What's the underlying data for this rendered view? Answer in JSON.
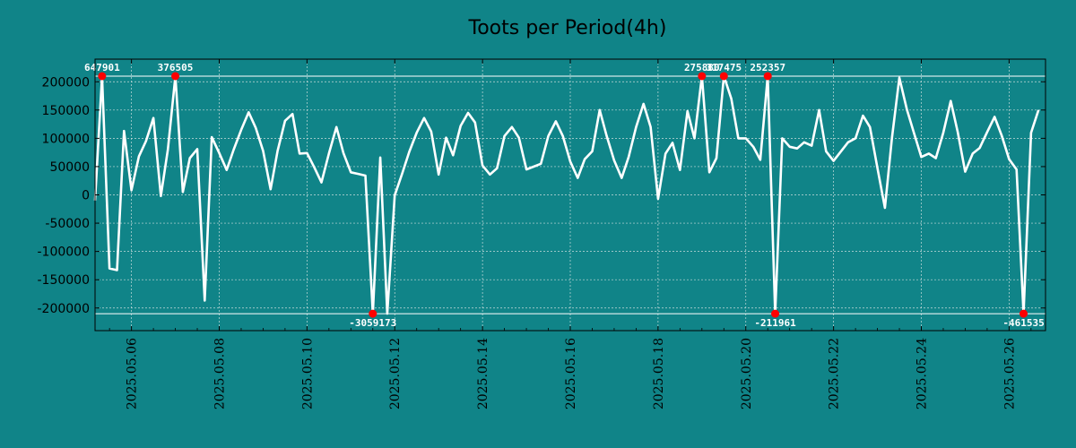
{
  "chart_data": {
    "type": "line",
    "title": "Toots per Period(4h)",
    "xlabel": "",
    "ylabel": "",
    "ylim": [
      -240000,
      240000
    ],
    "xlim_days": [
      5.17,
      26.83
    ],
    "grid": true,
    "colors": {
      "background": "#108488",
      "line": "#ffffff",
      "marker": "#ff0000",
      "grid": "#c8dcdc",
      "clip_line": "#ffffff"
    },
    "clip_limits": [
      210000,
      -210000
    ],
    "yticks": [
      {
        "value": 200000,
        "label": "200000"
      },
      {
        "value": 150000,
        "label": "150000"
      },
      {
        "value": 100000,
        "label": "100000"
      },
      {
        "value": 50000,
        "label": "50000"
      },
      {
        "value": 0,
        "label": "0"
      },
      {
        "value": -50000,
        "label": "-50000"
      },
      {
        "value": -100000,
        "label": "-100000"
      },
      {
        "value": -150000,
        "label": "-150000"
      },
      {
        "value": -200000,
        "label": "-200000"
      }
    ],
    "xticks": [
      {
        "day": 6,
        "label": "2025.05.06"
      },
      {
        "day": 8,
        "label": "2025.05.08"
      },
      {
        "day": 10,
        "label": "2025.05.10"
      },
      {
        "day": 12,
        "label": "2025.05.12"
      },
      {
        "day": 14,
        "label": "2025.05.14"
      },
      {
        "day": 16,
        "label": "2025.05.16"
      },
      {
        "day": 18,
        "label": "2025.05.18"
      },
      {
        "day": 20,
        "label": "2025.05.20"
      },
      {
        "day": 22,
        "label": "2025.05.22"
      },
      {
        "day": 24,
        "label": "2025.05.24"
      },
      {
        "day": 26,
        "label": "2025.05.26"
      }
    ],
    "series": [
      {
        "name": "Toots",
        "points": [
          [
            5.17,
            -10000
          ],
          [
            5.33,
            210000
          ],
          [
            5.5,
            -130000
          ],
          [
            5.67,
            -133000
          ],
          [
            5.83,
            113000
          ],
          [
            6.0,
            8000
          ],
          [
            6.17,
            68000
          ],
          [
            6.33,
            95000
          ],
          [
            6.5,
            136000
          ],
          [
            6.67,
            -2000
          ],
          [
            6.83,
            80000
          ],
          [
            7.0,
            210000
          ],
          [
            7.17,
            5000
          ],
          [
            7.33,
            65000
          ],
          [
            7.5,
            81000
          ],
          [
            7.67,
            -187000
          ],
          [
            7.83,
            102000
          ],
          [
            8.0,
            74000
          ],
          [
            8.17,
            44000
          ],
          [
            8.33,
            80000
          ],
          [
            8.5,
            115000
          ],
          [
            8.67,
            146000
          ],
          [
            8.83,
            119000
          ],
          [
            9.0,
            78000
          ],
          [
            9.17,
            10000
          ],
          [
            9.33,
            78000
          ],
          [
            9.5,
            131000
          ],
          [
            9.67,
            143000
          ],
          [
            9.83,
            73000
          ],
          [
            10.0,
            74000
          ],
          [
            10.17,
            48000
          ],
          [
            10.33,
            22000
          ],
          [
            10.5,
            73000
          ],
          [
            10.67,
            120000
          ],
          [
            10.83,
            74000
          ],
          [
            11.0,
            40000
          ],
          [
            11.17,
            37000
          ],
          [
            11.33,
            34000
          ],
          [
            11.5,
            -210000
          ],
          [
            11.67,
            66000
          ],
          [
            11.83,
            -210000
          ],
          [
            12.0,
            -1000
          ],
          [
            12.17,
            38000
          ],
          [
            12.33,
            76000
          ],
          [
            12.5,
            110000
          ],
          [
            12.67,
            136000
          ],
          [
            12.83,
            112000
          ],
          [
            13.0,
            36000
          ],
          [
            13.17,
            101000
          ],
          [
            13.33,
            70000
          ],
          [
            13.5,
            122000
          ],
          [
            13.67,
            145000
          ],
          [
            13.83,
            128000
          ],
          [
            14.0,
            52000
          ],
          [
            14.17,
            36000
          ],
          [
            14.33,
            47000
          ],
          [
            14.5,
            104000
          ],
          [
            14.67,
            120000
          ],
          [
            14.83,
            101000
          ],
          [
            15.0,
            45000
          ],
          [
            15.17,
            50000
          ],
          [
            15.33,
            55000
          ],
          [
            15.5,
            104000
          ],
          [
            15.67,
            130000
          ],
          [
            15.83,
            104000
          ],
          [
            16.0,
            59000
          ],
          [
            16.17,
            30000
          ],
          [
            16.33,
            63000
          ],
          [
            16.5,
            77000
          ],
          [
            16.67,
            150000
          ],
          [
            16.83,
            104000
          ],
          [
            17.0,
            61000
          ],
          [
            17.17,
            30000
          ],
          [
            17.33,
            67000
          ],
          [
            17.5,
            120000
          ],
          [
            17.67,
            161000
          ],
          [
            17.83,
            120000
          ],
          [
            18.0,
            -7000
          ],
          [
            18.17,
            73000
          ],
          [
            18.33,
            92000
          ],
          [
            18.5,
            44000
          ],
          [
            18.67,
            148000
          ],
          [
            18.83,
            100000
          ],
          [
            19.0,
            210000
          ],
          [
            19.17,
            40000
          ],
          [
            19.33,
            65000
          ],
          [
            19.5,
            210000
          ],
          [
            19.67,
            170000
          ],
          [
            19.83,
            100000
          ],
          [
            20.0,
            100000
          ],
          [
            20.17,
            85000
          ],
          [
            20.33,
            62000
          ],
          [
            20.5,
            210000
          ],
          [
            20.67,
            -210000
          ],
          [
            20.83,
            100000
          ],
          [
            21.0,
            85000
          ],
          [
            21.17,
            82000
          ],
          [
            21.33,
            93000
          ],
          [
            21.5,
            87000
          ],
          [
            21.67,
            150000
          ],
          [
            21.83,
            77000
          ],
          [
            22.0,
            60000
          ],
          [
            22.17,
            77000
          ],
          [
            22.33,
            93000
          ],
          [
            22.5,
            100000
          ],
          [
            22.67,
            140000
          ],
          [
            22.83,
            120000
          ],
          [
            23.0,
            47000
          ],
          [
            23.17,
            -23000
          ],
          [
            23.33,
            100000
          ],
          [
            23.5,
            207000
          ],
          [
            23.67,
            151000
          ],
          [
            23.83,
            110000
          ],
          [
            24.0,
            67000
          ],
          [
            24.17,
            73000
          ],
          [
            24.33,
            65000
          ],
          [
            24.5,
            110000
          ],
          [
            24.67,
            166000
          ],
          [
            24.83,
            111000
          ],
          [
            25.0,
            41000
          ],
          [
            25.17,
            73000
          ],
          [
            25.33,
            83000
          ],
          [
            25.5,
            111000
          ],
          [
            25.67,
            138000
          ],
          [
            25.83,
            105000
          ],
          [
            26.0,
            63000
          ],
          [
            26.17,
            45000
          ],
          [
            26.33,
            -210000
          ],
          [
            26.5,
            110000
          ],
          [
            26.67,
            150000
          ]
        ]
      }
    ],
    "annotations": [
      {
        "day": 5.33,
        "label": "647901",
        "side": "top"
      },
      {
        "day": 7.0,
        "label": "376505",
        "side": "top"
      },
      {
        "day": 19.0,
        "label": "275880",
        "side": "top"
      },
      {
        "day": 19.5,
        "label": "317475",
        "side": "top"
      },
      {
        "day": 20.5,
        "label": "252357",
        "side": "top"
      },
      {
        "day": 11.5,
        "label": "-3059173",
        "side": "bottom"
      },
      {
        "day": 20.67,
        "label": "-211961",
        "side": "bottom"
      },
      {
        "day": 26.33,
        "label": "-461535",
        "side": "bottom"
      }
    ]
  }
}
